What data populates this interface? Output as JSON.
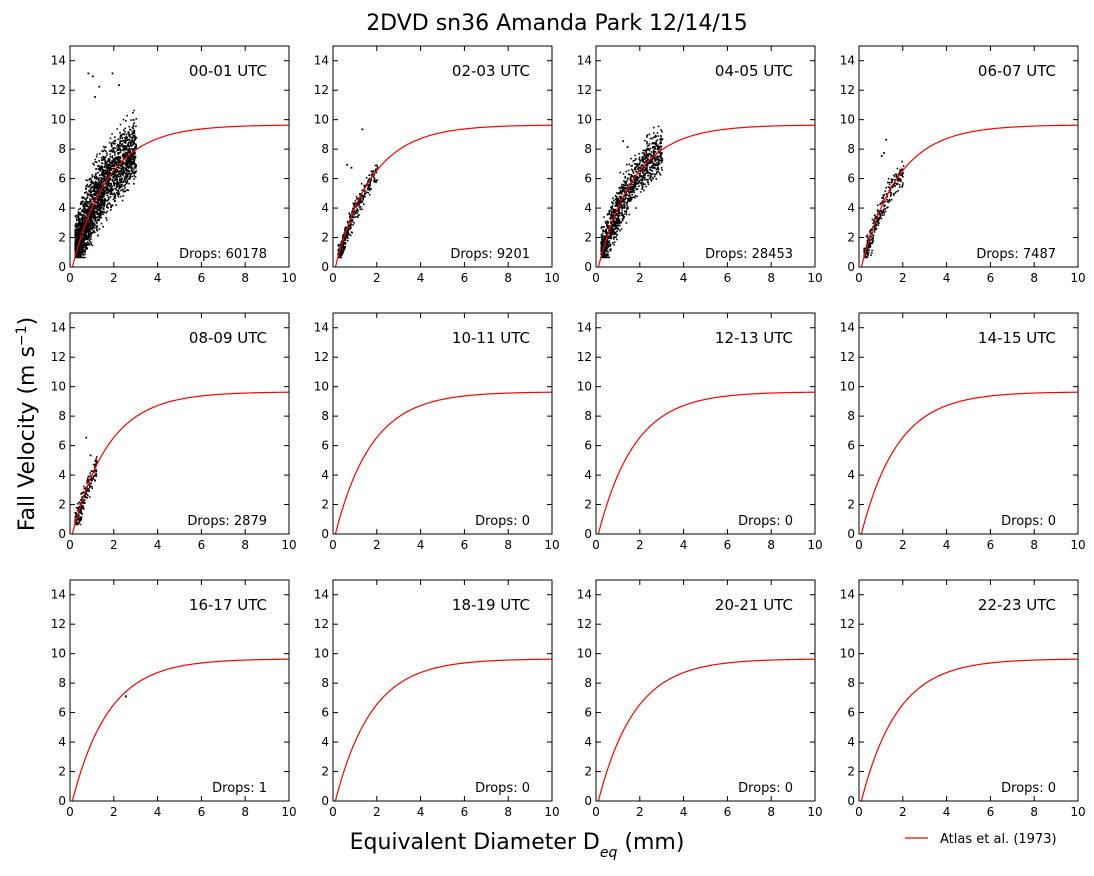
{
  "figure": {
    "title": "2DVD sn36 Amanda Park 12/14/15",
    "ylabel_main": "Fall Velocity (m s",
    "ylabel_sup": "−1",
    "ylabel_close": ")",
    "xlabel_main": "Equivalent Diameter D",
    "xlabel_sub": "eq",
    "xlabel_tail": " (mm)",
    "legend_label": "Atlas et al. (1973)",
    "curve_color": "#ff0000",
    "point_color": "#000000"
  },
  "chart_data": {
    "type": "scatter",
    "xlim": [
      0,
      10
    ],
    "ylim": [
      0,
      15
    ],
    "xticks": [
      0,
      2,
      4,
      6,
      8,
      10
    ],
    "yticks": [
      0,
      2,
      4,
      6,
      8,
      10,
      12,
      14
    ],
    "grid": false,
    "legend_placement": "bottom-right outside",
    "curve": {
      "name": "Atlas et al. (1973)",
      "formula": "v = 9.65 - 10.3*exp(-0.6*D)"
    },
    "panels": [
      {
        "label": "00-01 UTC",
        "drops_text": "Drops: 60178",
        "drops": 60178,
        "cloud": {
          "dmin": 0.2,
          "dmax": 3.0,
          "spread_below": 3.0,
          "spread_above": 3.5,
          "outliers": [
            [
              0.8,
              13.2
            ],
            [
              1.0,
              13.0
            ],
            [
              1.9,
              13.2
            ],
            [
              1.3,
              12.3
            ],
            [
              2.2,
              12.4
            ],
            [
              1.1,
              11.6
            ]
          ]
        }
      },
      {
        "label": "02-03 UTC",
        "drops_text": "Drops: 9201",
        "drops": 9201,
        "cloud": {
          "dmin": 0.2,
          "dmax": 2.0,
          "spread_below": 1.2,
          "spread_above": 1.0,
          "outliers": [
            [
              1.3,
              9.4
            ],
            [
              0.6,
              7.0
            ],
            [
              0.8,
              6.8
            ]
          ]
        }
      },
      {
        "label": "04-05 UTC",
        "drops_text": "Drops: 28453",
        "drops": 28453,
        "cloud": {
          "dmin": 0.2,
          "dmax": 3.0,
          "spread_below": 2.2,
          "spread_above": 2.3,
          "outliers": [
            [
              2.3,
              9.0
            ],
            [
              1.2,
              8.6
            ],
            [
              1.4,
              8.2
            ]
          ]
        }
      },
      {
        "label": "06-07 UTC",
        "drops_text": "Drops: 7487",
        "drops": 7487,
        "cloud": {
          "dmin": 0.2,
          "dmax": 2.0,
          "spread_below": 1.5,
          "spread_above": 1.2,
          "outliers": [
            [
              1.2,
              8.7
            ],
            [
              1.1,
              7.8
            ],
            [
              1.0,
              7.6
            ]
          ]
        }
      },
      {
        "label": "08-09 UTC",
        "drops_text": "Drops: 2879",
        "drops": 2879,
        "cloud": {
          "dmin": 0.2,
          "dmax": 1.2,
          "spread_below": 1.2,
          "spread_above": 1.2,
          "outliers": [
            [
              0.7,
              6.6
            ],
            [
              0.9,
              5.4
            ]
          ]
        }
      },
      {
        "label": "10-11 UTC",
        "drops_text": "Drops: 0",
        "drops": 0,
        "cloud": null
      },
      {
        "label": "12-13 UTC",
        "drops_text": "Drops: 0",
        "drops": 0,
        "cloud": null
      },
      {
        "label": "14-15 UTC",
        "drops_text": "Drops: 0",
        "drops": 0,
        "cloud": null
      },
      {
        "label": "16-17 UTC",
        "drops_text": "Drops: 1",
        "drops": 1,
        "points": [
          [
            2.55,
            7.1
          ]
        ]
      },
      {
        "label": "18-19 UTC",
        "drops_text": "Drops: 0",
        "drops": 0,
        "cloud": null
      },
      {
        "label": "20-21 UTC",
        "drops_text": "Drops: 0",
        "drops": 0,
        "cloud": null
      },
      {
        "label": "22-23 UTC",
        "drops_text": "Drops: 0",
        "drops": 0,
        "cloud": null
      }
    ]
  }
}
